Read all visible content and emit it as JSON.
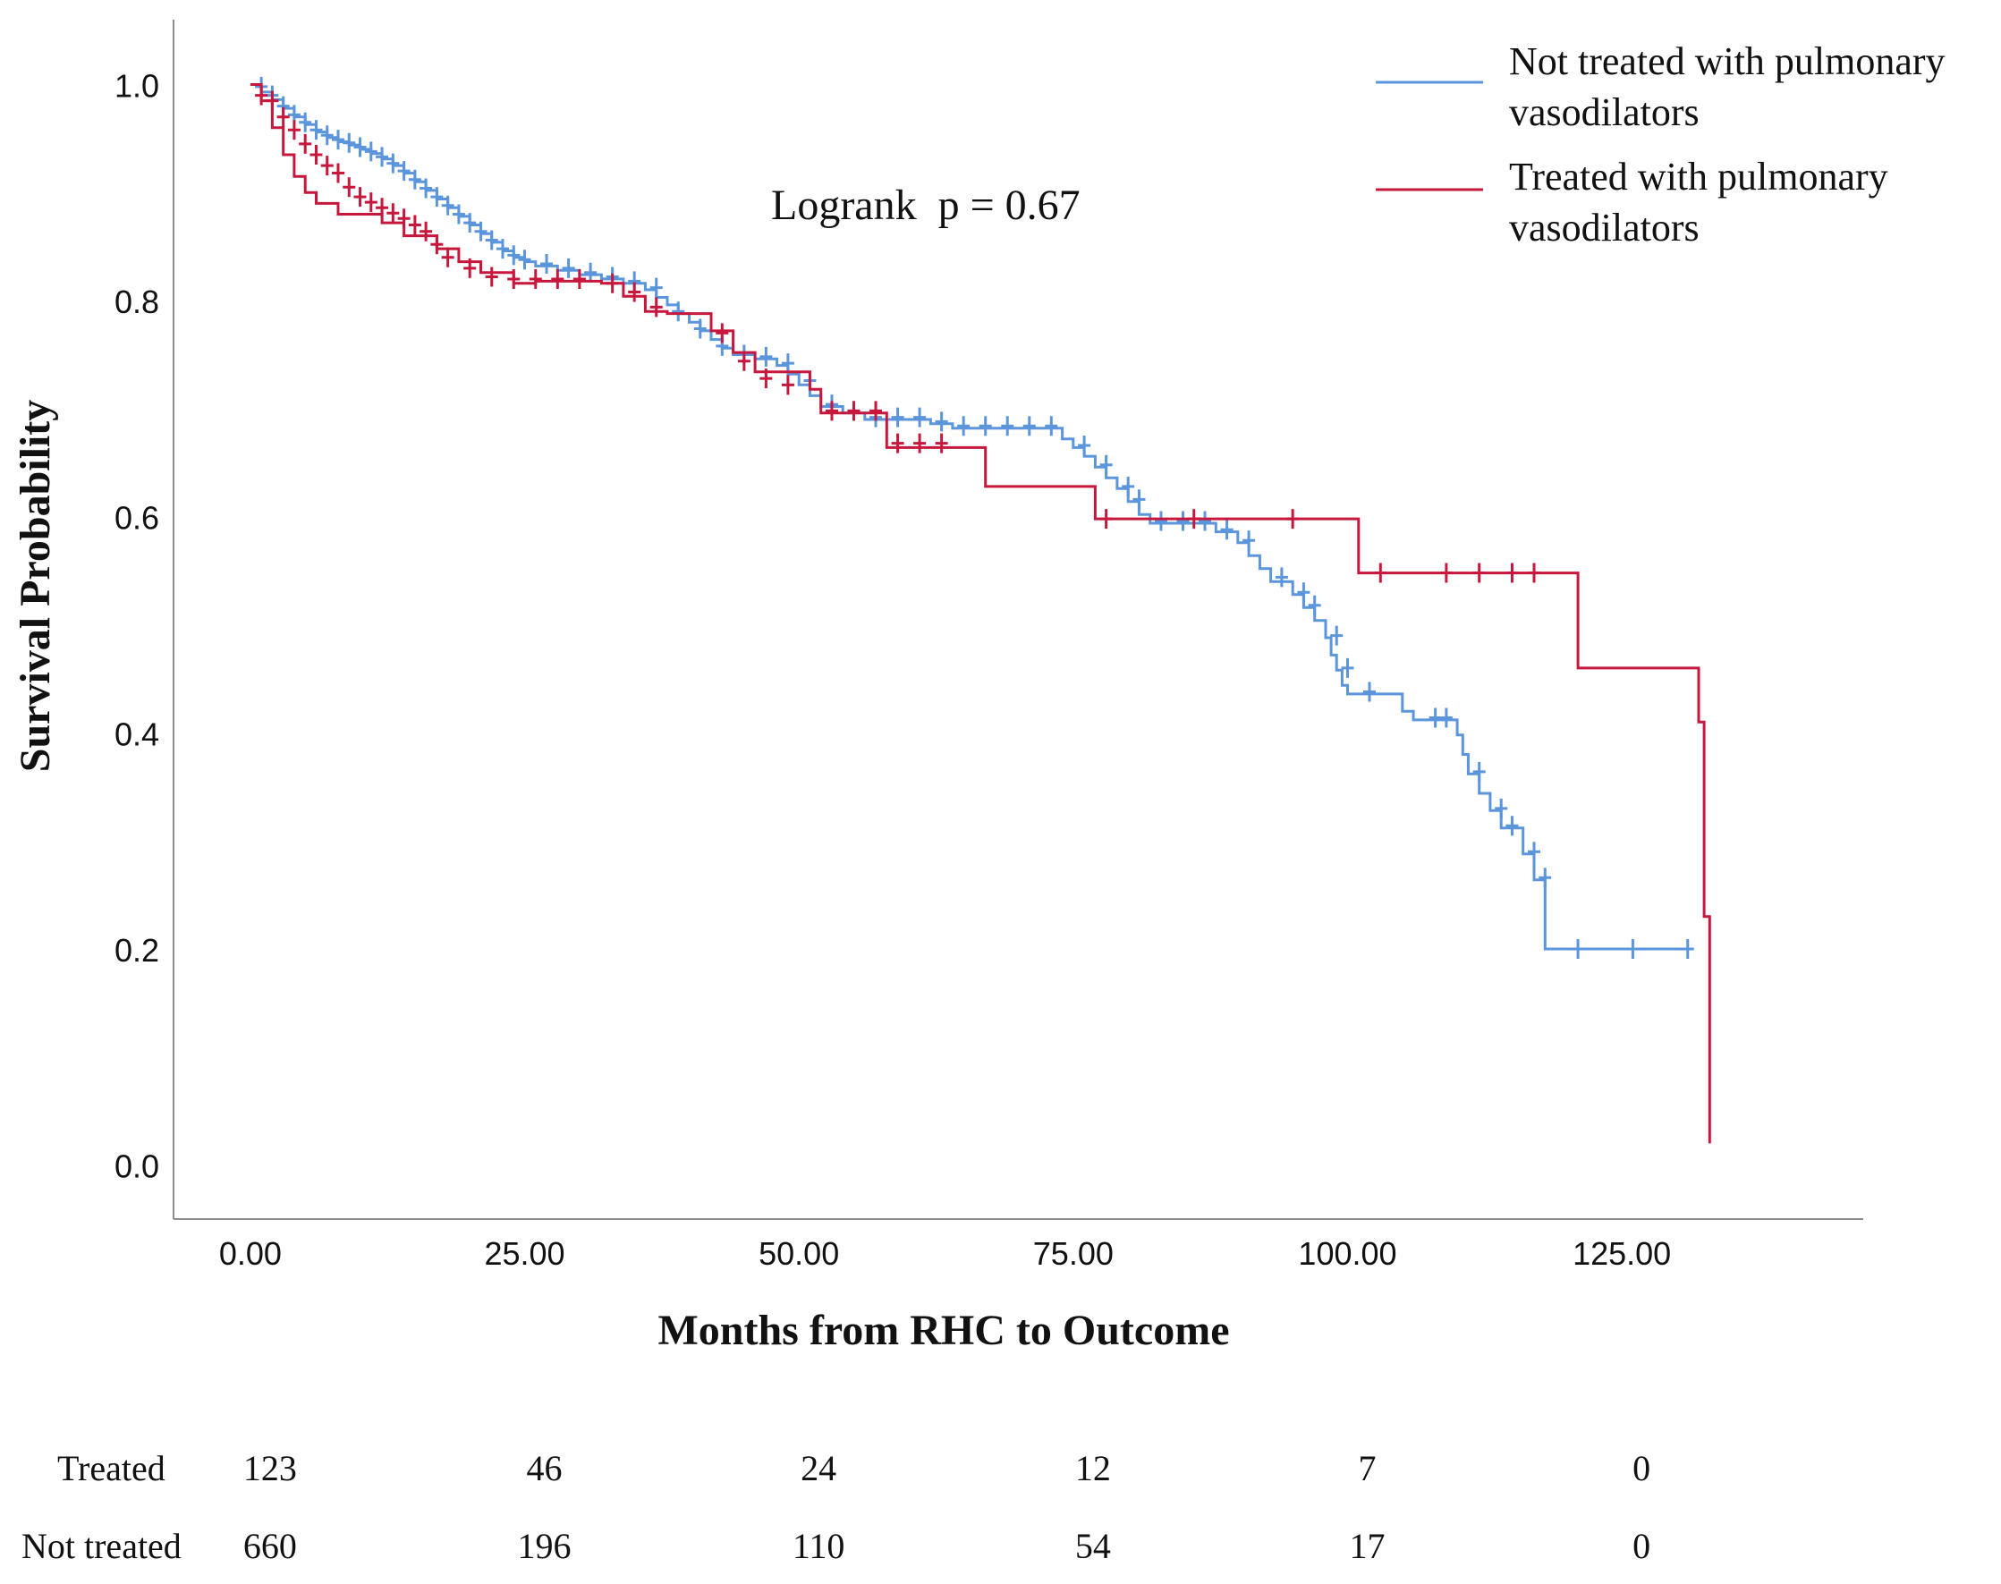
{
  "chart_data": {
    "type": "line",
    "subtype": "kaplan-meier",
    "title": "",
    "xlabel": "Months from RHC to Outcome",
    "ylabel": "Survival Probability",
    "xlim": [
      -7,
      147
    ],
    "ylim": [
      -0.05,
      1.06
    ],
    "x_ticks": [
      0,
      25,
      50,
      75,
      100,
      125
    ],
    "x_tick_labels": [
      "0.00",
      "25.00",
      "50.00",
      "75.00",
      "100.00",
      "125.00"
    ],
    "y_ticks": [
      0.0,
      0.2,
      0.4,
      0.6,
      0.8,
      1.0
    ],
    "y_tick_labels": [
      "0.0",
      "0.2",
      "0.4",
      "0.6",
      "0.8",
      "1.0"
    ],
    "annotation": "Logrank  p = 0.67",
    "legend_position": "top-right",
    "series": [
      {
        "name": "Not treated with pulmonary vasodilators",
        "legend_lines": [
          "Not treated with pulmonary",
          "vasodilators"
        ],
        "color": "#5b95dc",
        "steps": [
          [
            0,
            1.0
          ],
          [
            1,
            0.993
          ],
          [
            2,
            0.986
          ],
          [
            3,
            0.978
          ],
          [
            4,
            0.97
          ],
          [
            5,
            0.963
          ],
          [
            6,
            0.956
          ],
          [
            7,
            0.951
          ],
          [
            8,
            0.947
          ],
          [
            9,
            0.944
          ],
          [
            10,
            0.94
          ],
          [
            11,
            0.936
          ],
          [
            12,
            0.931
          ],
          [
            13,
            0.925
          ],
          [
            14,
            0.918
          ],
          [
            15,
            0.91
          ],
          [
            16,
            0.902
          ],
          [
            17,
            0.894
          ],
          [
            18,
            0.886
          ],
          [
            19,
            0.878
          ],
          [
            20,
            0.87
          ],
          [
            21,
            0.862
          ],
          [
            22,
            0.854
          ],
          [
            23,
            0.846
          ],
          [
            24,
            0.84
          ],
          [
            25,
            0.836
          ],
          [
            26,
            0.832
          ],
          [
            28,
            0.828
          ],
          [
            30,
            0.824
          ],
          [
            32,
            0.82
          ],
          [
            34,
            0.816
          ],
          [
            36,
            0.81
          ],
          [
            37,
            0.803
          ],
          [
            38,
            0.796
          ],
          [
            39,
            0.788
          ],
          [
            40,
            0.78
          ],
          [
            41,
            0.772
          ],
          [
            42,
            0.764
          ],
          [
            43,
            0.756
          ],
          [
            44,
            0.75
          ],
          [
            46,
            0.746
          ],
          [
            48,
            0.74
          ],
          [
            49,
            0.732
          ],
          [
            50,
            0.722
          ],
          [
            51,
            0.712
          ],
          [
            52,
            0.702
          ],
          [
            54,
            0.696
          ],
          [
            56,
            0.69
          ],
          [
            62,
            0.686
          ],
          [
            64,
            0.682
          ],
          [
            74,
            0.672
          ],
          [
            75,
            0.664
          ],
          [
            76,
            0.656
          ],
          [
            77,
            0.646
          ],
          [
            78,
            0.636
          ],
          [
            79,
            0.626
          ],
          [
            80,
            0.614
          ],
          [
            81,
            0.602
          ],
          [
            82,
            0.594
          ],
          [
            88,
            0.586
          ],
          [
            90,
            0.576
          ],
          [
            91,
            0.564
          ],
          [
            92,
            0.552
          ],
          [
            93,
            0.54
          ],
          [
            95,
            0.528
          ],
          [
            96,
            0.516
          ],
          [
            97,
            0.504
          ],
          [
            98,
            0.488
          ],
          [
            98.5,
            0.472
          ],
          [
            99,
            0.458
          ],
          [
            99.5,
            0.444
          ],
          [
            100,
            0.436
          ],
          [
            105,
            0.42
          ],
          [
            106,
            0.412
          ],
          [
            110,
            0.398
          ],
          [
            110.5,
            0.38
          ],
          [
            111,
            0.362
          ],
          [
            112,
            0.344
          ],
          [
            113,
            0.328
          ],
          [
            114,
            0.312
          ],
          [
            116,
            0.288
          ],
          [
            117,
            0.264
          ],
          [
            118,
            0.2
          ],
          [
            131,
            0.2
          ]
        ],
        "censored": [
          [
            1,
            0.998
          ],
          [
            2,
            0.99
          ],
          [
            3,
            0.98
          ],
          [
            4,
            0.972
          ],
          [
            5,
            0.965
          ],
          [
            6,
            0.958
          ],
          [
            7,
            0.953
          ],
          [
            8,
            0.949
          ],
          [
            9,
            0.946
          ],
          [
            10,
            0.942
          ],
          [
            11,
            0.938
          ],
          [
            12,
            0.933
          ],
          [
            13,
            0.927
          ],
          [
            14,
            0.92
          ],
          [
            15,
            0.912
          ],
          [
            16,
            0.904
          ],
          [
            17,
            0.896
          ],
          [
            18,
            0.888
          ],
          [
            19,
            0.88
          ],
          [
            20,
            0.872
          ],
          [
            21,
            0.864
          ],
          [
            22,
            0.856
          ],
          [
            23,
            0.848
          ],
          [
            24,
            0.842
          ],
          [
            25,
            0.838
          ],
          [
            27,
            0.834
          ],
          [
            29,
            0.83
          ],
          [
            31,
            0.826
          ],
          [
            33,
            0.822
          ],
          [
            35,
            0.818
          ],
          [
            37,
            0.812
          ],
          [
            39,
            0.79
          ],
          [
            41,
            0.774
          ],
          [
            43,
            0.758
          ],
          [
            45,
            0.75
          ],
          [
            47,
            0.748
          ],
          [
            49,
            0.742
          ],
          [
            51,
            0.726
          ],
          [
            53,
            0.704
          ],
          [
            55,
            0.698
          ],
          [
            57,
            0.692
          ],
          [
            59,
            0.692
          ],
          [
            61,
            0.692
          ],
          [
            63,
            0.688
          ],
          [
            65,
            0.684
          ],
          [
            67,
            0.684
          ],
          [
            69,
            0.684
          ],
          [
            71,
            0.684
          ],
          [
            73,
            0.684
          ],
          [
            76,
            0.666
          ],
          [
            78,
            0.648
          ],
          [
            80,
            0.628
          ],
          [
            81,
            0.616
          ],
          [
            83,
            0.596
          ],
          [
            85,
            0.596
          ],
          [
            87,
            0.596
          ],
          [
            89,
            0.588
          ],
          [
            91,
            0.578
          ],
          [
            94,
            0.544
          ],
          [
            96,
            0.53
          ],
          [
            97,
            0.518
          ],
          [
            99,
            0.49
          ],
          [
            100,
            0.46
          ],
          [
            102,
            0.438
          ],
          [
            108,
            0.414
          ],
          [
            109,
            0.414
          ],
          [
            112,
            0.364
          ],
          [
            114,
            0.33
          ],
          [
            115,
            0.314
          ],
          [
            117,
            0.29
          ],
          [
            118,
            0.266
          ],
          [
            121,
            0.2
          ],
          [
            126,
            0.2
          ],
          [
            131,
            0.2
          ]
        ]
      },
      {
        "name": "Treated with pulmonary vasodilators",
        "legend_lines": [
          "Treated with pulmonary",
          "vasodilators"
        ],
        "color": "#c8173c",
        "steps": [
          [
            0,
            1.0
          ],
          [
            1,
            0.985
          ],
          [
            2,
            0.96
          ],
          [
            3,
            0.935
          ],
          [
            4,
            0.915
          ],
          [
            5,
            0.9
          ],
          [
            6,
            0.89
          ],
          [
            8,
            0.88
          ],
          [
            12,
            0.872
          ],
          [
            14,
            0.86
          ],
          [
            17,
            0.848
          ],
          [
            19,
            0.836
          ],
          [
            21,
            0.826
          ],
          [
            24,
            0.816
          ],
          [
            26,
            0.818
          ],
          [
            32,
            0.816
          ],
          [
            34,
            0.804
          ],
          [
            36,
            0.79
          ],
          [
            38,
            0.788
          ],
          [
            42,
            0.772
          ],
          [
            44,
            0.752
          ],
          [
            46,
            0.734
          ],
          [
            51,
            0.718
          ],
          [
            52,
            0.696
          ],
          [
            58,
            0.664
          ],
          [
            67,
            0.628
          ],
          [
            77,
            0.598
          ],
          [
            101,
            0.548
          ],
          [
            121,
            0.46
          ],
          [
            132,
            0.41
          ],
          [
            132.5,
            0.23
          ],
          [
            133,
            0.02
          ]
        ],
        "censored": [
          [
            1,
            0.99
          ],
          [
            2,
            0.985
          ],
          [
            3,
            0.97
          ],
          [
            4,
            0.958
          ],
          [
            5,
            0.945
          ],
          [
            6,
            0.935
          ],
          [
            7,
            0.925
          ],
          [
            8,
            0.918
          ],
          [
            9,
            0.905
          ],
          [
            10,
            0.896
          ],
          [
            11,
            0.891
          ],
          [
            12,
            0.886
          ],
          [
            13,
            0.881
          ],
          [
            14,
            0.876
          ],
          [
            15,
            0.87
          ],
          [
            16,
            0.864
          ],
          [
            17,
            0.852
          ],
          [
            18,
            0.84
          ],
          [
            20,
            0.83
          ],
          [
            22,
            0.822
          ],
          [
            24,
            0.82
          ],
          [
            26,
            0.82
          ],
          [
            28,
            0.82
          ],
          [
            30,
            0.82
          ],
          [
            33,
            0.816
          ],
          [
            35,
            0.808
          ],
          [
            37,
            0.794
          ],
          [
            43,
            0.77
          ],
          [
            45,
            0.744
          ],
          [
            47,
            0.728
          ],
          [
            49,
            0.722
          ],
          [
            53,
            0.698
          ],
          [
            55,
            0.698
          ],
          [
            57,
            0.698
          ],
          [
            59,
            0.668
          ],
          [
            61,
            0.668
          ],
          [
            63,
            0.668
          ],
          [
            78,
            0.598
          ],
          [
            86,
            0.598
          ],
          [
            95,
            0.598
          ],
          [
            103,
            0.548
          ],
          [
            109,
            0.548
          ],
          [
            112,
            0.548
          ],
          [
            115,
            0.548
          ],
          [
            117,
            0.548
          ]
        ]
      }
    ],
    "risk_table": {
      "timepoints": [
        0,
        25,
        50,
        75,
        100,
        125
      ],
      "rows": [
        {
          "label": "Treated",
          "values": [
            "123",
            "46",
            "24",
            "12",
            "7",
            "0"
          ]
        },
        {
          "label": "Not treated",
          "values": [
            "660",
            "196",
            "110",
            "54",
            "17",
            "0"
          ]
        }
      ]
    }
  }
}
